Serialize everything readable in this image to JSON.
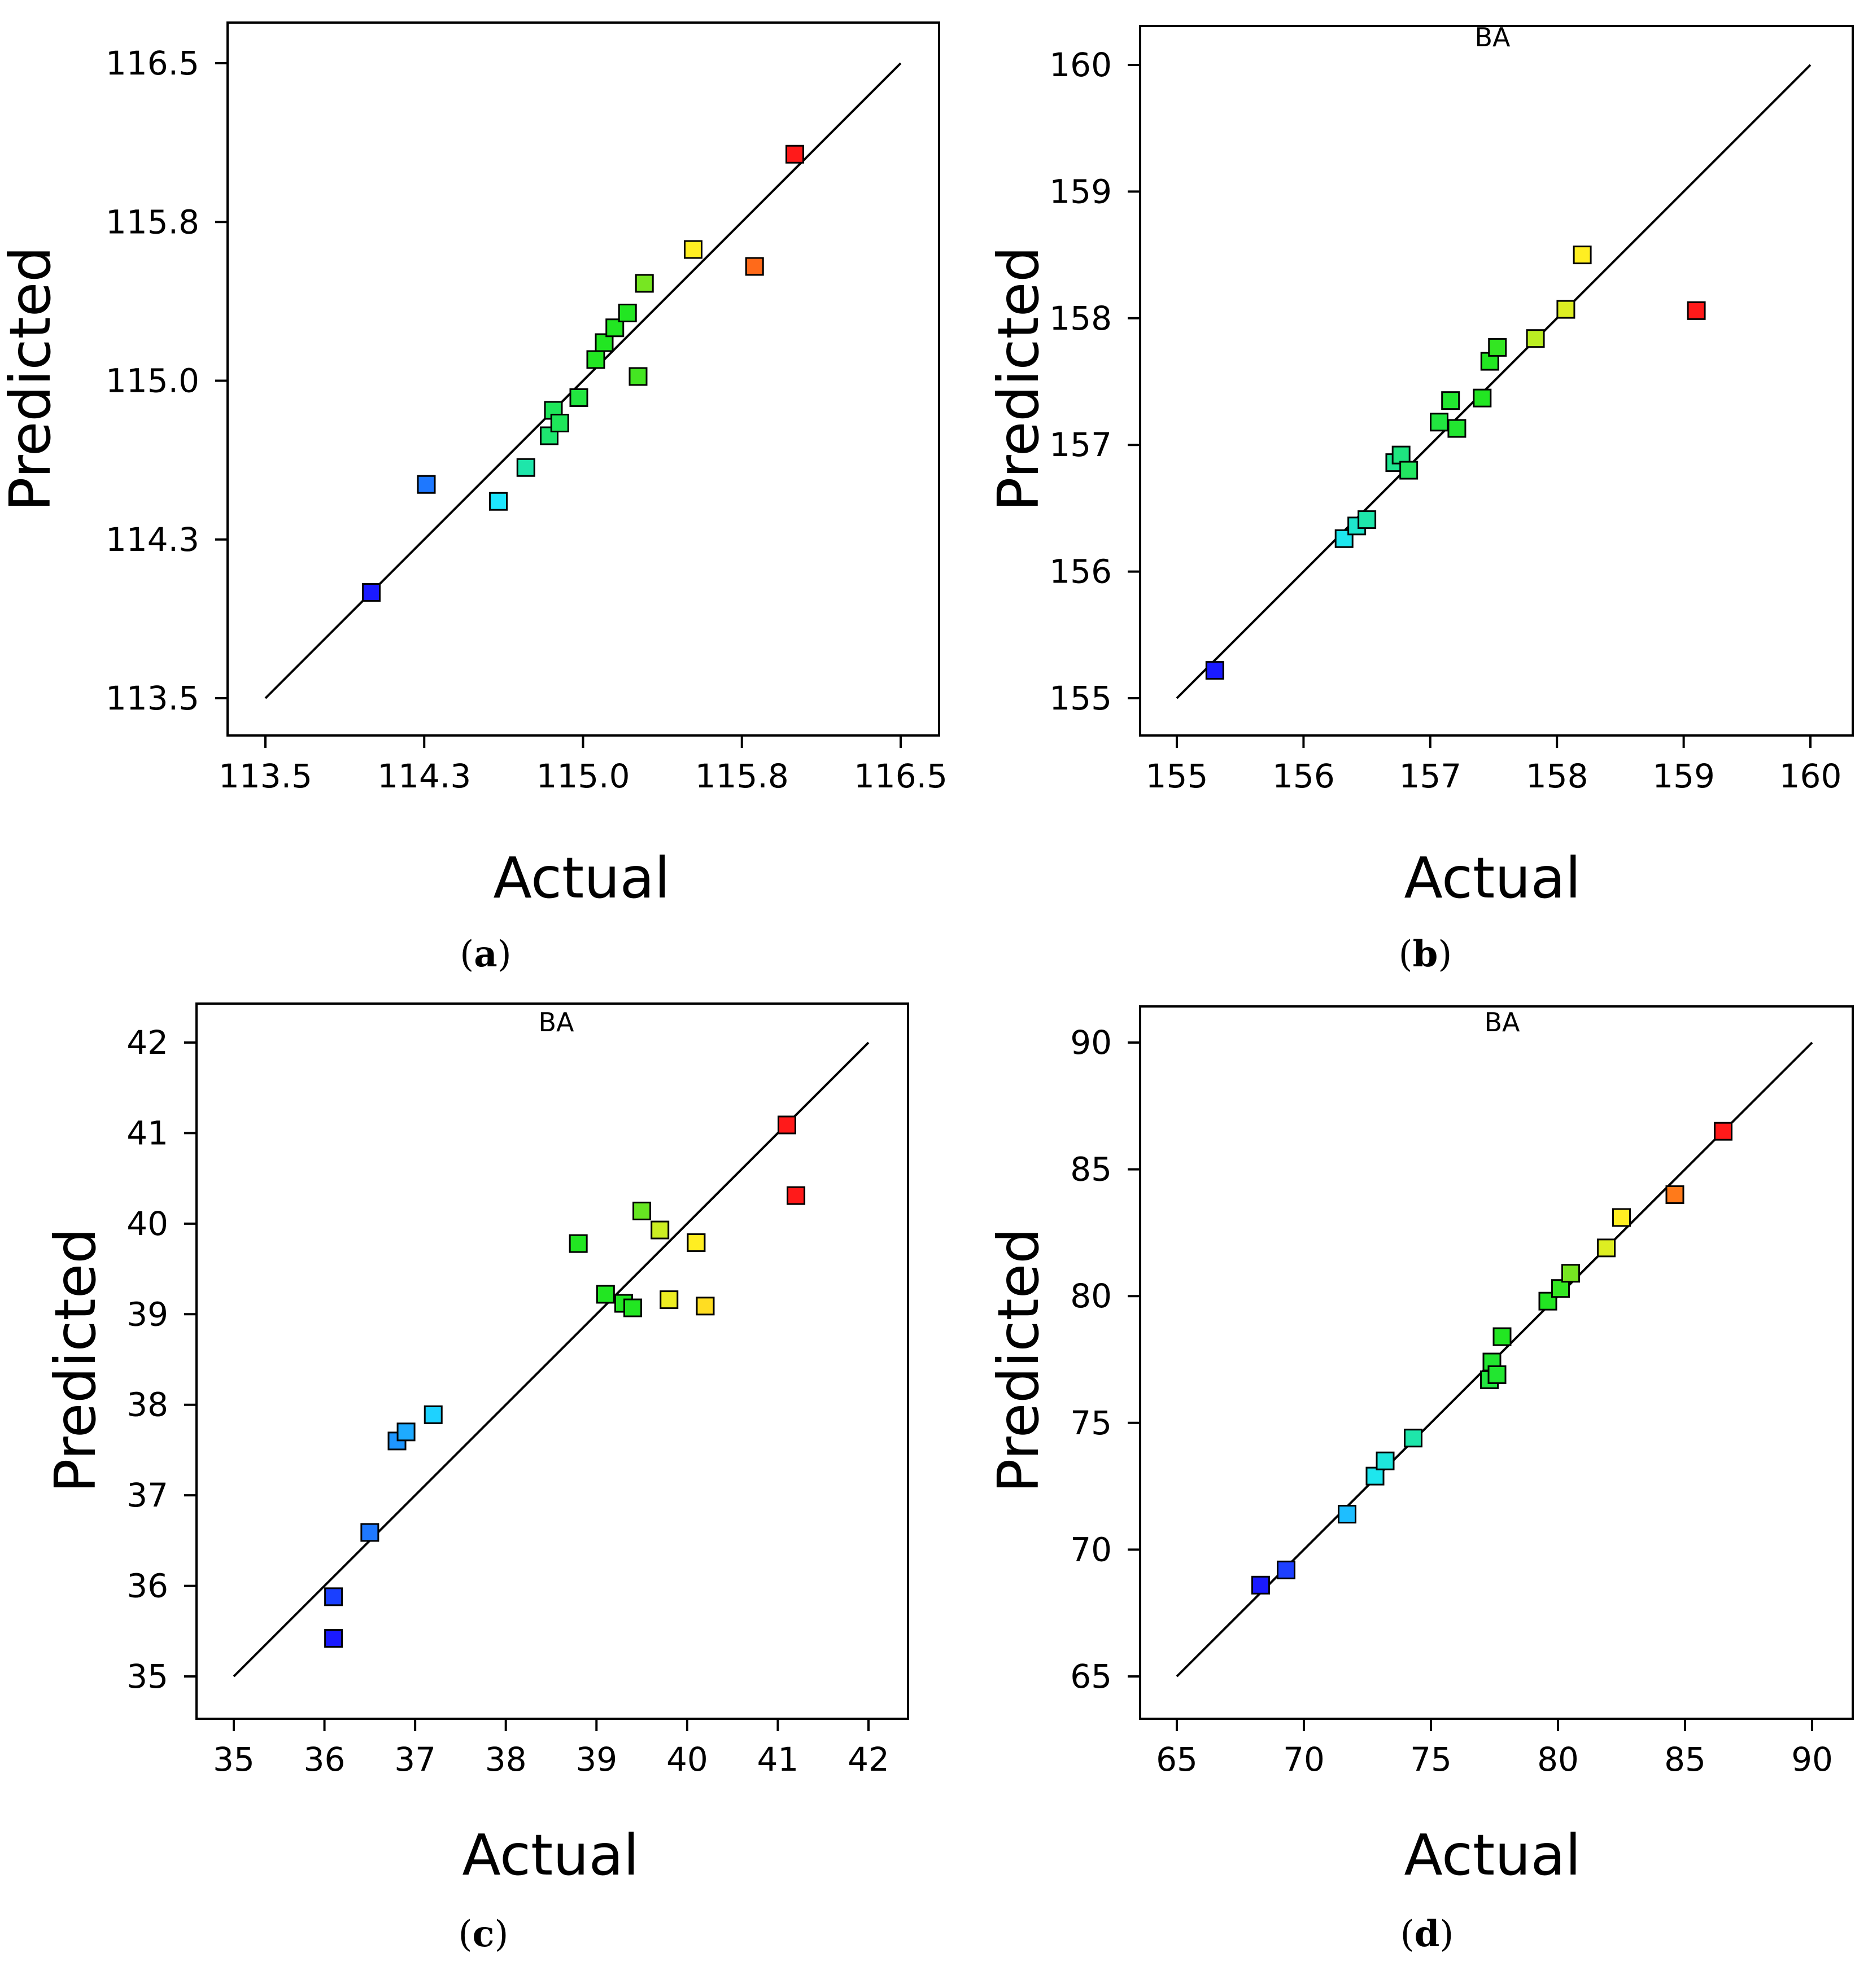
{
  "chart_data": [
    {
      "type": "scatter",
      "panel": "a",
      "caption": {
        "open": "(",
        "letter": "a",
        "close": ")"
      },
      "xlabel": "Actual",
      "ylabel": "Predicted",
      "xlim": [
        113.5,
        116.5
      ],
      "ylim": [
        113.5,
        116.5
      ],
      "xticks": [
        "113.5",
        "114.3",
        "115.0",
        "115.8",
        "116.5"
      ],
      "yticks": [
        "113.5",
        "114.3",
        "115.0",
        "115.8",
        "116.5"
      ],
      "xtick_values": [
        113.5,
        114.25,
        115.0,
        115.75,
        116.5
      ],
      "ytick_values": [
        113.5,
        114.25,
        115.0,
        115.75,
        116.5
      ],
      "fit_line": [
        [
          113.5,
          113.5
        ],
        [
          116.5,
          116.5
        ]
      ],
      "overlap_label": "",
      "points": [
        {
          "x": 114.0,
          "y": 114.0,
          "color": "#1a1aff"
        },
        {
          "x": 114.26,
          "y": 114.51,
          "color": "#1e78ff"
        },
        {
          "x": 114.6,
          "y": 114.43,
          "color": "#1ee6ff"
        },
        {
          "x": 114.73,
          "y": 114.59,
          "color": "#1ee6aa"
        },
        {
          "x": 114.84,
          "y": 114.74,
          "color": "#1ee670"
        },
        {
          "x": 114.86,
          "y": 114.86,
          "color": "#1ee65a"
        },
        {
          "x": 114.89,
          "y": 114.8,
          "color": "#1ee65a"
        },
        {
          "x": 114.98,
          "y": 114.92,
          "color": "#22e640"
        },
        {
          "x": 115.06,
          "y": 115.1,
          "color": "#22e622"
        },
        {
          "x": 115.1,
          "y": 115.18,
          "color": "#22e622"
        },
        {
          "x": 115.15,
          "y": 115.25,
          "color": "#22e622"
        },
        {
          "x": 115.21,
          "y": 115.32,
          "color": "#22e622"
        },
        {
          "x": 115.26,
          "y": 115.02,
          "color": "#44e622"
        },
        {
          "x": 115.29,
          "y": 115.46,
          "color": "#77e622"
        },
        {
          "x": 115.52,
          "y": 115.62,
          "color": "#ffee22"
        },
        {
          "x": 115.81,
          "y": 115.54,
          "color": "#ff6a1a"
        },
        {
          "x": 116.0,
          "y": 116.07,
          "color": "#ff1a1a"
        }
      ]
    },
    {
      "type": "scatter",
      "panel": "b",
      "caption": {
        "open": "(",
        "letter": "b",
        "close": ")"
      },
      "xlabel": "Actual",
      "ylabel": "Predicted",
      "xlim": [
        155,
        160
      ],
      "ylim": [
        155,
        160
      ],
      "xticks": [
        "155",
        "156",
        "157",
        "158",
        "159",
        "160"
      ],
      "yticks": [
        "155",
        "156",
        "157",
        "158",
        "159",
        "160"
      ],
      "xtick_values": [
        155,
        156,
        157,
        158,
        159,
        160
      ],
      "ytick_values": [
        155,
        156,
        157,
        158,
        159,
        160
      ],
      "fit_line": [
        [
          155,
          155
        ],
        [
          160,
          160
        ]
      ],
      "overlap_label": "BA",
      "points": [
        {
          "x": 155.3,
          "y": 155.22,
          "color": "#1a1aff"
        },
        {
          "x": 156.32,
          "y": 156.26,
          "color": "#1ee6ee"
        },
        {
          "x": 156.42,
          "y": 156.36,
          "color": "#1ee6cc"
        },
        {
          "x": 156.5,
          "y": 156.41,
          "color": "#1ee6aa"
        },
        {
          "x": 156.72,
          "y": 156.86,
          "color": "#1ee690"
        },
        {
          "x": 156.77,
          "y": 156.92,
          "color": "#1ee680"
        },
        {
          "x": 156.83,
          "y": 156.8,
          "color": "#22e660"
        },
        {
          "x": 157.07,
          "y": 157.18,
          "color": "#22e640"
        },
        {
          "x": 157.16,
          "y": 157.35,
          "color": "#22e630"
        },
        {
          "x": 157.21,
          "y": 157.13,
          "color": "#22e630"
        },
        {
          "x": 157.41,
          "y": 157.37,
          "color": "#22e622"
        },
        {
          "x": 157.47,
          "y": 157.66,
          "color": "#22e622"
        },
        {
          "x": 157.53,
          "y": 157.77,
          "color": "#33e622"
        },
        {
          "x": 157.83,
          "y": 157.84,
          "color": "#bbee22"
        },
        {
          "x": 158.07,
          "y": 158.07,
          "color": "#ddee22"
        },
        {
          "x": 158.2,
          "y": 158.5,
          "color": "#ffee22"
        },
        {
          "x": 159.1,
          "y": 158.06,
          "color": "#ff1a1a"
        }
      ]
    },
    {
      "type": "scatter",
      "panel": "c",
      "caption": {
        "open": "(",
        "letter": "c",
        "close": ")"
      },
      "xlabel": "Actual",
      "ylabel": "Predicted",
      "xlim": [
        35,
        42
      ],
      "ylim": [
        35,
        42
      ],
      "xticks": [
        "35",
        "36",
        "37",
        "38",
        "39",
        "40",
        "41",
        "42"
      ],
      "yticks": [
        "35",
        "36",
        "37",
        "38",
        "39",
        "40",
        "41",
        "42"
      ],
      "xtick_values": [
        35,
        36,
        37,
        38,
        39,
        40,
        41,
        42
      ],
      "ytick_values": [
        35,
        36,
        37,
        38,
        39,
        40,
        41,
        42
      ],
      "fit_line": [
        [
          35,
          35
        ],
        [
          42,
          42
        ]
      ],
      "overlap_label": "BA",
      "points": [
        {
          "x": 36.1,
          "y": 35.42,
          "color": "#1a1aff"
        },
        {
          "x": 36.1,
          "y": 35.88,
          "color": "#1a40ff"
        },
        {
          "x": 36.5,
          "y": 36.59,
          "color": "#1e78ff"
        },
        {
          "x": 36.8,
          "y": 37.6,
          "color": "#1e96ff"
        },
        {
          "x": 36.9,
          "y": 37.7,
          "color": "#1eaaff"
        },
        {
          "x": 37.2,
          "y": 37.89,
          "color": "#1ed2ff"
        },
        {
          "x": 38.8,
          "y": 39.78,
          "color": "#22e622"
        },
        {
          "x": 39.1,
          "y": 39.22,
          "color": "#22e622"
        },
        {
          "x": 39.3,
          "y": 39.12,
          "color": "#22e622"
        },
        {
          "x": 39.4,
          "y": 39.07,
          "color": "#22e622"
        },
        {
          "x": 39.5,
          "y": 40.14,
          "color": "#66e622"
        },
        {
          "x": 39.7,
          "y": 39.93,
          "color": "#ccee22"
        },
        {
          "x": 39.8,
          "y": 39.16,
          "color": "#eeee22"
        },
        {
          "x": 40.1,
          "y": 39.79,
          "color": "#ffee22"
        },
        {
          "x": 40.2,
          "y": 39.09,
          "color": "#ffdd22"
        },
        {
          "x": 41.1,
          "y": 41.09,
          "color": "#ff1a1a"
        },
        {
          "x": 41.2,
          "y": 40.31,
          "color": "#ff1a1a"
        }
      ]
    },
    {
      "type": "scatter",
      "panel": "d",
      "caption": {
        "open": "(",
        "letter": "d",
        "close": ")"
      },
      "xlabel": "Actual",
      "ylabel": "Predicted",
      "xlim": [
        65,
        90
      ],
      "ylim": [
        65,
        90
      ],
      "xticks": [
        "65",
        "70",
        "75",
        "80",
        "85",
        "90"
      ],
      "yticks": [
        "65",
        "70",
        "75",
        "80",
        "85",
        "90"
      ],
      "xtick_values": [
        65,
        70,
        75,
        80,
        85,
        90
      ],
      "ytick_values": [
        65,
        70,
        75,
        80,
        85,
        90
      ],
      "fit_line": [
        [
          65,
          65
        ],
        [
          90,
          90
        ]
      ],
      "overlap_label": "BA",
      "points": [
        {
          "x": 68.3,
          "y": 68.6,
          "color": "#1a1aff"
        },
        {
          "x": 69.3,
          "y": 69.2,
          "color": "#1e40ff"
        },
        {
          "x": 71.7,
          "y": 71.4,
          "color": "#1ebeff"
        },
        {
          "x": 72.8,
          "y": 72.9,
          "color": "#1ee6ee"
        },
        {
          "x": 73.2,
          "y": 73.5,
          "color": "#1ee6dd"
        },
        {
          "x": 74.3,
          "y": 74.4,
          "color": "#1ee6aa"
        },
        {
          "x": 77.3,
          "y": 76.7,
          "color": "#22e640"
        },
        {
          "x": 77.4,
          "y": 77.4,
          "color": "#22e630"
        },
        {
          "x": 77.6,
          "y": 76.9,
          "color": "#22e630"
        },
        {
          "x": 77.8,
          "y": 78.4,
          "color": "#22e622"
        },
        {
          "x": 79.6,
          "y": 79.8,
          "color": "#22e622"
        },
        {
          "x": 80.1,
          "y": 80.3,
          "color": "#33e622"
        },
        {
          "x": 80.5,
          "y": 80.9,
          "color": "#77e622"
        },
        {
          "x": 81.9,
          "y": 81.9,
          "color": "#ddee22"
        },
        {
          "x": 82.5,
          "y": 83.1,
          "color": "#ffee22"
        },
        {
          "x": 84.6,
          "y": 84.0,
          "color": "#ff7a1a"
        },
        {
          "x": 86.5,
          "y": 86.5,
          "color": "#ff1a1a"
        }
      ]
    }
  ]
}
